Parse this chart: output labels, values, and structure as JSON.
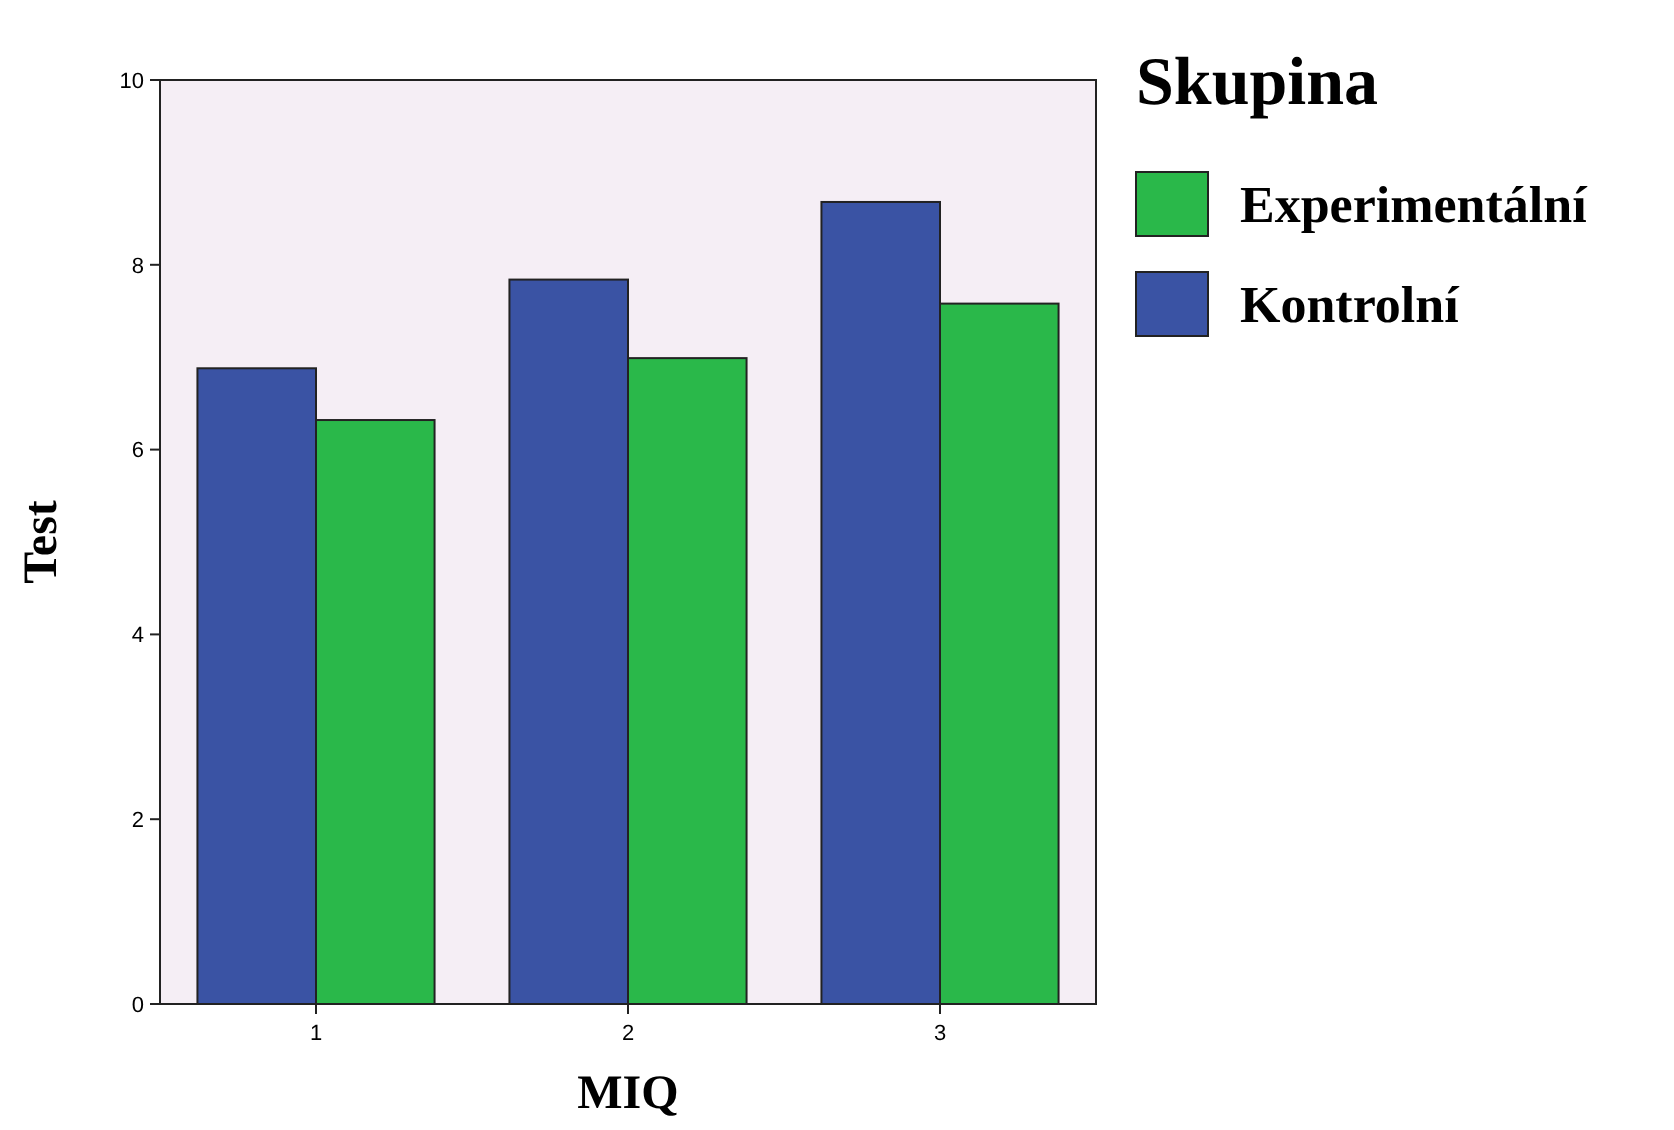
{
  "chart_data": {
    "type": "bar",
    "xlabel": "MIQ",
    "ylabel": "Test",
    "legend_title": "Skupina",
    "categories": [
      "1",
      "2",
      "3"
    ],
    "series": [
      {
        "name": "Kontrolní",
        "color": "#3a53a4",
        "values": [
          6.88,
          7.84,
          8.68
        ]
      },
      {
        "name": "Experimentální",
        "color": "#2ab84a",
        "values": [
          6.32,
          6.99,
          7.58
        ]
      }
    ],
    "ylim": [
      0,
      10
    ],
    "yticks": [
      0,
      2,
      4,
      6,
      8,
      10
    ],
    "grid": false,
    "legend": "right"
  }
}
